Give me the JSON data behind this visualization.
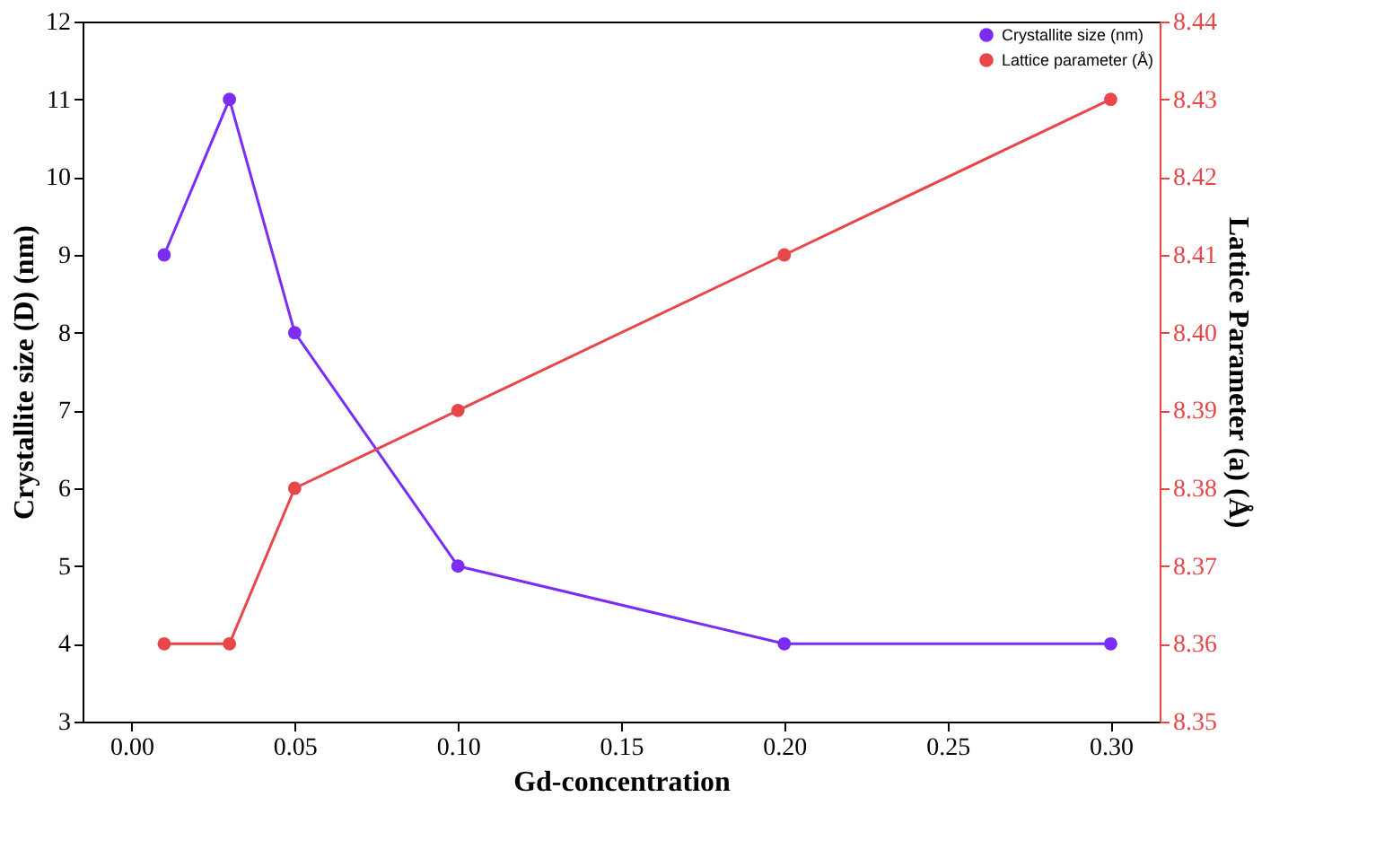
{
  "chart_data": {
    "type": "line",
    "xlabel": "Gd-concentration",
    "ylabel": "Crystallite size (D) (nm)",
    "y2label": "Lattice Parameter (a) (Å)",
    "x": [
      0.01,
      0.03,
      0.05,
      0.1,
      0.2,
      0.3
    ],
    "series": [
      {
        "name": "Crystallite size (nm)",
        "color": "#7b2cf5",
        "values": [
          9,
          11,
          8,
          5,
          4,
          4
        ]
      },
      {
        "name": "Lattice parameter (Å)",
        "color": "#e8474a",
        "axis": "y2",
        "values": [
          8.36,
          8.36,
          8.38,
          8.39,
          8.41,
          8.43
        ]
      }
    ],
    "xlim": [
      -0.015,
      0.315
    ],
    "xticks": [
      {
        "value": 0,
        "label": "0.00"
      },
      {
        "value": 0.05,
        "label": "0.05"
      },
      {
        "value": 0.1,
        "label": "0.10"
      },
      {
        "value": 0.15,
        "label": "0.15"
      },
      {
        "value": 0.2,
        "label": "0.20"
      },
      {
        "value": 0.25,
        "label": "0.25"
      },
      {
        "value": 0.3,
        "label": "0.30"
      }
    ],
    "ylim": [
      3,
      12
    ],
    "yticks": [
      3,
      4,
      5,
      6,
      7,
      8,
      9,
      10,
      11,
      12
    ],
    "y2lim": [
      8.35,
      8.44
    ],
    "y2ticks": [
      8.35,
      8.36,
      8.37,
      8.38,
      8.39,
      {
        "value": 8.4,
        "label": "8.40"
      },
      8.41,
      8.42,
      8.43,
      8.44
    ],
    "grid": false,
    "legend": "top right",
    "marker": "circle",
    "line_style": "solid"
  }
}
